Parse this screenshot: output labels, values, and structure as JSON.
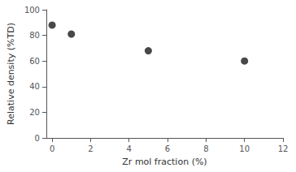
{
  "chart_data": {
    "type": "scatter",
    "x": [
      0,
      1,
      5,
      10
    ],
    "values": [
      88,
      81,
      68,
      60
    ],
    "color": "#1a1a1a",
    "marker": "circle",
    "xlabel": "Zr mol fraction (%)",
    "ylabel": "Relative density (%TD)",
    "xlim": [
      -0.3,
      12
    ],
    "ylim": [
      0,
      100
    ],
    "xticks": [
      0,
      2,
      4,
      6,
      8,
      10,
      12
    ],
    "yticks": [
      0,
      20,
      40,
      60,
      80,
      100
    ],
    "grid": false
  }
}
